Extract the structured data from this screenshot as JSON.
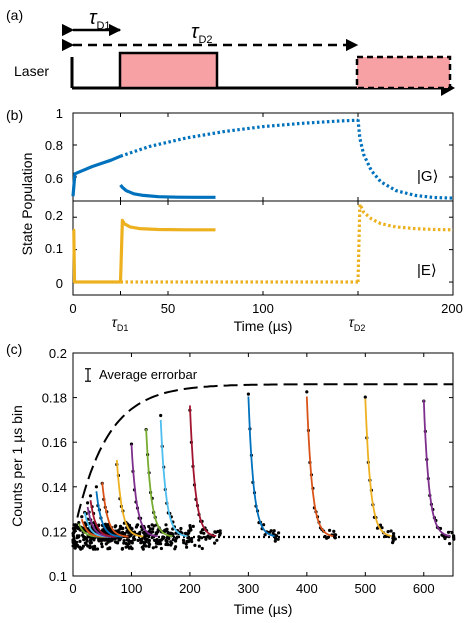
{
  "colors": {
    "blue": "#0072bd",
    "orange": "#d95319",
    "yellow": "#edb120",
    "purple": "#7e2f8e",
    "green": "#77ac30",
    "cyan": "#4dbeee",
    "red": "#a2142f",
    "laser_fill": "#f7a1a4"
  },
  "chart_data": [
    {
      "type": "line",
      "panel_label": "(a)",
      "row_label": "Laser",
      "annotations": [
        {
          "text": "τ",
          "sub": "D1"
        },
        {
          "text": "τ",
          "sub": "D2"
        }
      ],
      "laser_pulses": [
        {
          "start": 25,
          "end": 75
        },
        {
          "start": 150,
          "end": 200
        }
      ]
    },
    {
      "type": "line",
      "panel_label": "(b)",
      "ylabel": "State Population",
      "xlabel": "Time (µs)",
      "xlim": [
        0,
        200
      ],
      "x_ticks": [
        {
          "text": "0",
          "sub": ""
        },
        {
          "text": "τ",
          "sub": "D1"
        },
        {
          "text": "50",
          "sub": ""
        },
        {
          "text": "100",
          "sub": ""
        },
        {
          "text": "τ",
          "sub": "D2"
        },
        {
          "text": "200",
          "sub": ""
        }
      ],
      "top": {
        "state_label": "|G⟩",
        "ylim": [
          0.45,
          1.0
        ],
        "yticks": [
          "1",
          "0.8",
          "0.6"
        ],
        "series": [
          {
            "style": "solid",
            "color": "blue",
            "x": [
              0,
              1,
              3,
              6,
              10,
              15,
              20,
              25
            ],
            "y": [
              0.48,
              0.62,
              0.63,
              0.645,
              0.665,
              0.685,
              0.705,
              0.73
            ]
          },
          {
            "style": "solid",
            "color": "blue",
            "x": [
              25,
              26,
              28,
              32,
              37,
              45,
              55,
              65,
              75
            ],
            "y": [
              0.55,
              0.535,
              0.515,
              0.495,
              0.485,
              0.477,
              0.474,
              0.473,
              0.473
            ]
          },
          {
            "style": "dotted",
            "color": "blue",
            "x": [
              25,
              40,
              60,
              80,
              100,
              120,
              140,
              150
            ],
            "y": [
              0.73,
              0.79,
              0.845,
              0.885,
              0.915,
              0.935,
              0.95,
              0.955
            ]
          },
          {
            "style": "dotted",
            "color": "blue",
            "x": [
              150,
              151,
              153,
              157,
              162,
              170,
              180,
              190,
              200
            ],
            "y": [
              0.96,
              0.84,
              0.74,
              0.64,
              0.57,
              0.515,
              0.485,
              0.472,
              0.468
            ]
          }
        ]
      },
      "bottom": {
        "state_label": "|E⟩",
        "ylim": [
          -0.04,
          0.25
        ],
        "yticks": [
          "0.2",
          "0.1",
          "0"
        ],
        "series": [
          {
            "style": "solid",
            "color": "yellow",
            "x": [
              0,
              0.4,
              0.8,
              25
            ],
            "y": [
              0.16,
              0.16,
              0,
              0
            ]
          },
          {
            "style": "solid",
            "color": "yellow",
            "x": [
              25,
              26,
              27,
              30,
              35,
              45,
              60,
              75
            ],
            "y": [
              0,
              0.19,
              0.18,
              0.17,
              0.165,
              0.162,
              0.161,
              0.161
            ]
          },
          {
            "style": "dotted",
            "color": "yellow",
            "x": [
              25,
              150
            ],
            "y": [
              0,
              0
            ]
          },
          {
            "style": "dotted",
            "color": "yellow",
            "x": [
              150,
              151,
              153,
              157,
              162,
              170,
              180,
              190,
              200
            ],
            "y": [
              0,
              0.24,
              0.215,
              0.195,
              0.18,
              0.17,
              0.165,
              0.162,
              0.161
            ]
          }
        ]
      }
    },
    {
      "type": "scatter",
      "panel_label": "(c)",
      "xlabel": "Time (µs)",
      "ylabel": "Counts per 1 µs bin",
      "xlim": [
        0,
        650
      ],
      "ylim": [
        0.1,
        0.2
      ],
      "xticks": [
        0,
        100,
        200,
        300,
        400,
        500,
        600
      ],
      "yticks": [
        0.1,
        0.12,
        0.14,
        0.16,
        0.18,
        0.2
      ],
      "legend": {
        "label": "Average errorbar",
        "placement": "top-left",
        "half_height": 0.0028
      },
      "baseline": 0.1175,
      "envelope": {
        "amplitude": 0.0685,
        "tau": 55,
        "x_max": 650
      },
      "decay_tau": 9,
      "pulses": [
        {
          "start": 10,
          "peak": 0.1235,
          "color": "green"
        },
        {
          "start": 15,
          "peak": 0.1255,
          "color": "orange"
        },
        {
          "start": 20,
          "peak": 0.1285,
          "color": "cyan"
        },
        {
          "start": 25,
          "peak": 0.131,
          "color": "purple"
        },
        {
          "start": 30,
          "peak": 0.134,
          "color": "red"
        },
        {
          "start": 40,
          "peak": 0.138,
          "color": "blue"
        },
        {
          "start": 50,
          "peak": 0.142,
          "color": "orange"
        },
        {
          "start": 75,
          "peak": 0.152,
          "color": "yellow"
        },
        {
          "start": 100,
          "peak": 0.159,
          "color": "purple"
        },
        {
          "start": 125,
          "peak": 0.166,
          "color": "green"
        },
        {
          "start": 150,
          "peak": 0.17,
          "color": "cyan"
        },
        {
          "start": 200,
          "peak": 0.1765,
          "color": "red"
        },
        {
          "start": 300,
          "peak": 0.1805,
          "color": "blue"
        },
        {
          "start": 400,
          "peak": 0.1805,
          "color": "orange"
        },
        {
          "start": 500,
          "peak": 0.1795,
          "color": "yellow"
        },
        {
          "start": 600,
          "peak": 0.179,
          "color": "purple"
        }
      ]
    }
  ]
}
